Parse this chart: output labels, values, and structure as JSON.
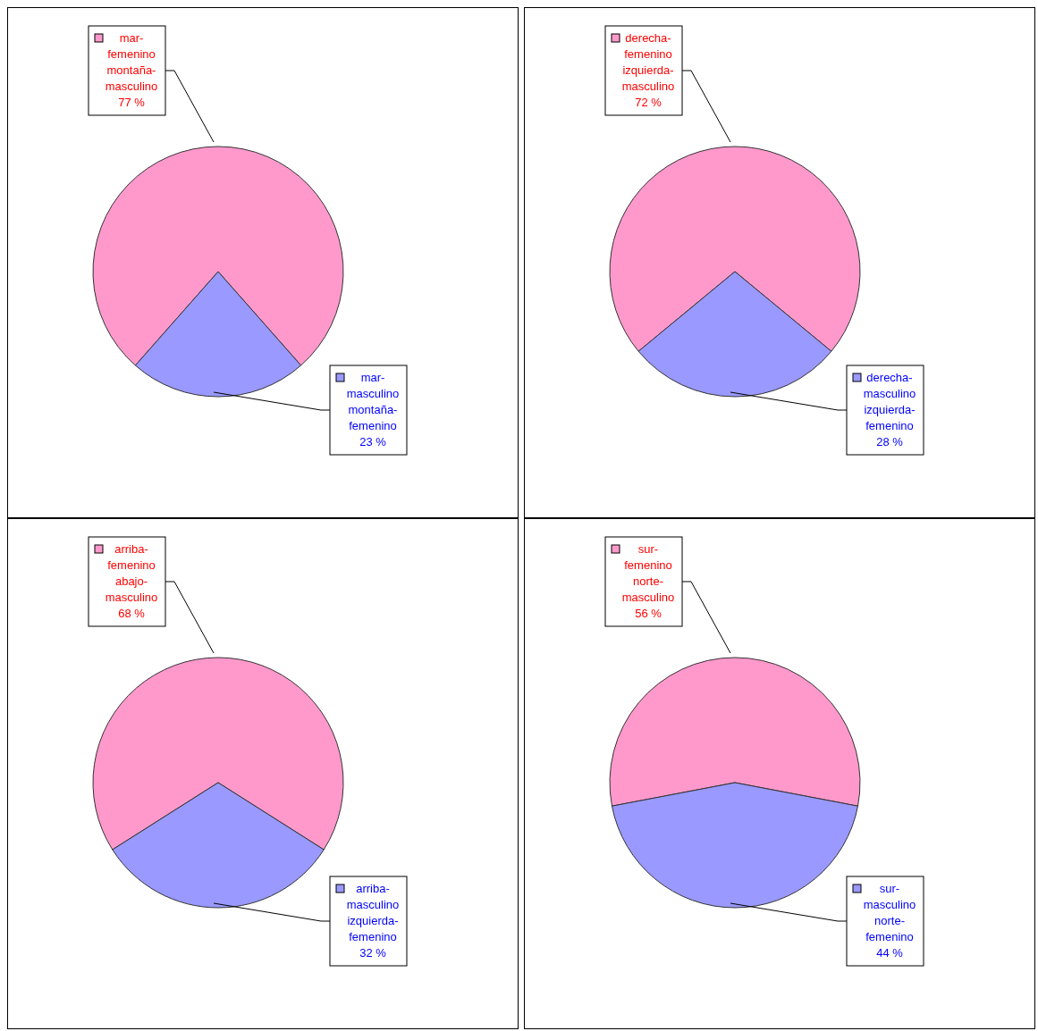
{
  "chart_data": [
    {
      "type": "pie",
      "categories": [
        "mar-femenino montaña-masculino",
        "mar-masculino montaña-femenino"
      ],
      "values": [
        77,
        23
      ],
      "value_labels": [
        "77 %",
        "23 %"
      ],
      "colors": [
        "#ff99cc",
        "#9999ff"
      ],
      "legend": "top right"
    },
    {
      "type": "pie",
      "categories": [
        "derecha-femenino izquierda-masculino",
        "derecha-masculino izquierda-femenino"
      ],
      "values": [
        72,
        28
      ],
      "value_labels": [
        "72 %",
        "28 %"
      ],
      "colors": [
        "#ff99cc",
        "#9999ff"
      ],
      "legend": "top right"
    },
    {
      "type": "pie",
      "categories": [
        "arriba-femenino abajo-masculino",
        "arriba-masculino izquierda-femenino"
      ],
      "values": [
        68,
        32
      ],
      "value_labels": [
        "68 %",
        "32 %"
      ],
      "colors": [
        "#ff99cc",
        "#9999ff"
      ],
      "legend": "top right"
    },
    {
      "type": "pie",
      "categories": [
        "sur-femenino norte-masculino",
        "sur-masculino norte-femenino"
      ],
      "values": [
        56,
        44
      ],
      "value_labels": [
        "56 %",
        "44 %"
      ],
      "colors": [
        "#ff99cc",
        "#9999ff"
      ],
      "legend": "top right"
    }
  ]
}
